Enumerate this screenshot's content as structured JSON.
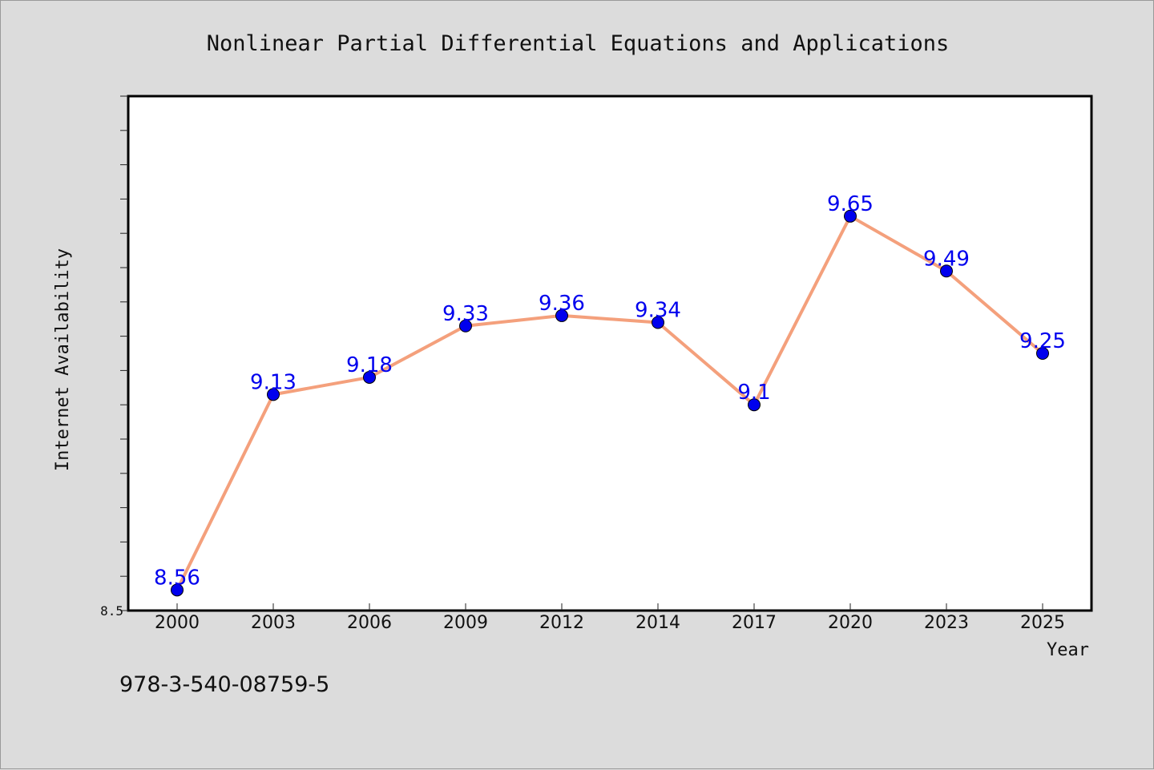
{
  "chart_data": {
    "type": "line",
    "title": "Nonlinear Partial Differential Equations and Applications",
    "xlabel": "Year",
    "ylabel": "Internet Availability",
    "categories": [
      "2000",
      "2003",
      "2006",
      "2009",
      "2012",
      "2014",
      "2017",
      "2020",
      "2023",
      "2025"
    ],
    "series": [
      {
        "values": [
          8.56,
          9.13,
          9.18,
          9.33,
          9.36,
          9.34,
          9.1,
          9.65,
          9.49,
          9.25
        ],
        "data_labels": [
          "8.56",
          "9.13",
          "9.18",
          "9.33",
          "9.36",
          "9.34",
          "9.1",
          "9.65",
          "9.49",
          "9.25"
        ],
        "line_color": "#f4a07c",
        "marker_color": "#0000ee"
      }
    ],
    "ylim": [
      8.5,
      10.0
    ],
    "yticks_labeled": [
      "8.5"
    ],
    "y_minor_step": 0.1,
    "grid": false,
    "legend": "none",
    "data_label_color": "#0000ee"
  },
  "caption": "978-3-540-08759-5"
}
